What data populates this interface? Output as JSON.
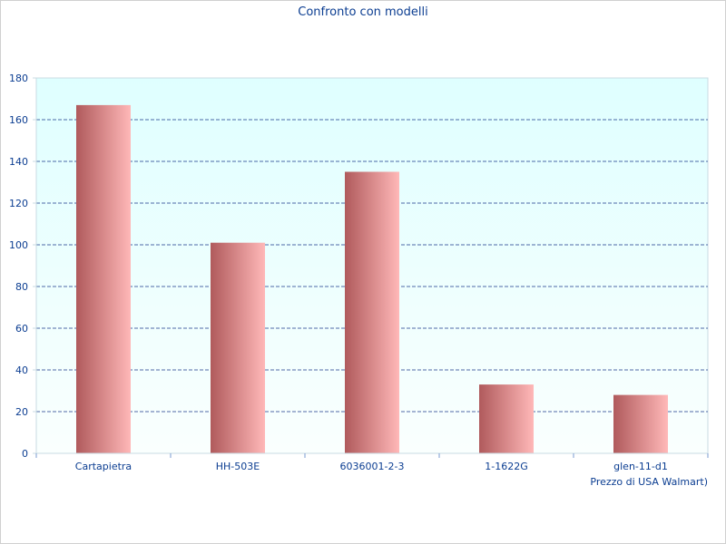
{
  "chart_data": {
    "type": "bar",
    "title": "Confronto con modelli",
    "xlabel": "Prezzo di USA Walmart)",
    "ylabel": "",
    "categories": [
      "Cartapietra",
      "HH-503E",
      "6036001-2-3",
      "1-1622G",
      "glen-11-d1"
    ],
    "values": [
      167,
      101,
      135,
      33,
      28
    ],
    "ylim": [
      0,
      180
    ],
    "yticks": [
      0,
      20,
      40,
      60,
      80,
      100,
      120,
      140,
      160,
      180
    ],
    "grid": true,
    "legend": "none"
  },
  "colors": {
    "plot_bg_top": "#dfffff",
    "plot_bg_bottom": "#fafffe",
    "bar_dark": "#b05a5c",
    "bar_light": "#ffb8b8",
    "grid": "#1a3a8a",
    "text": "#0b3d91",
    "axis": "#c9dbe3"
  }
}
